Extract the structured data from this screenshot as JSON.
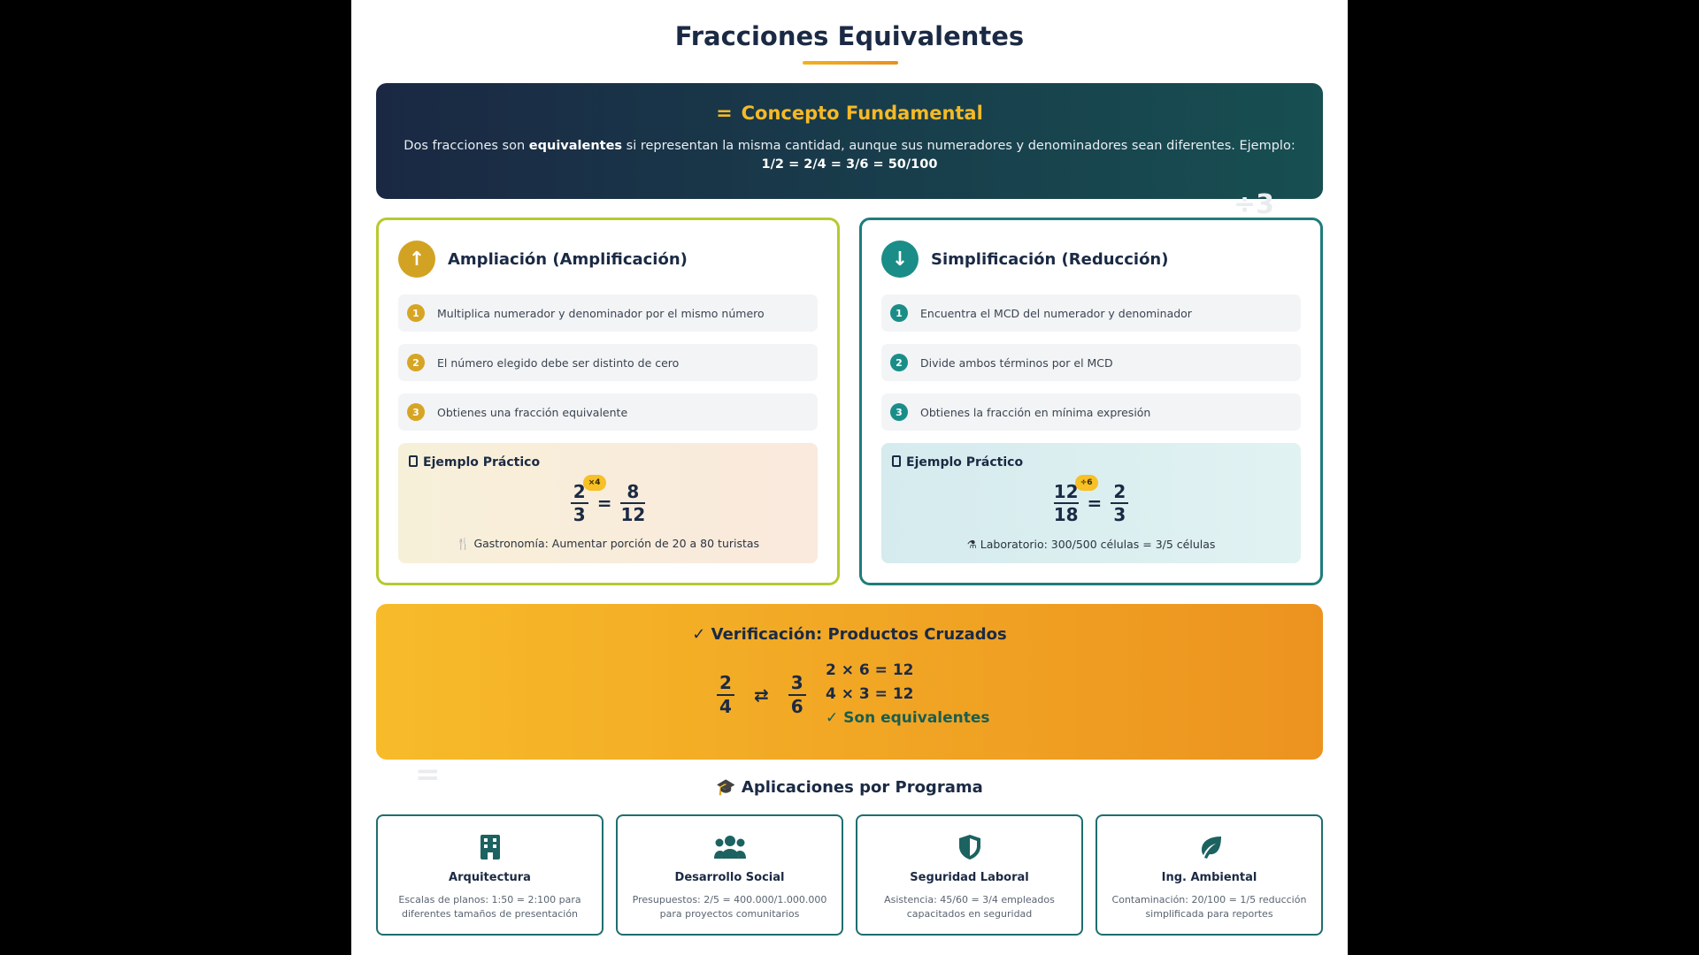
{
  "title": "Fracciones Equivalentes",
  "concept": {
    "title": "Concepto Fundamental",
    "text_before": "Dos fracciones son ",
    "text_bold": "equivalentes",
    "text_after": " si representan la misma cantidad, aunque sus numeradores y denominadores sean diferentes. Ejemplo: ",
    "example": "1/2 = 2/4 = 3/6 = 50/100"
  },
  "amplification": {
    "title": "Ampliación (Amplificación)",
    "steps": [
      {
        "n": "1",
        "text": "Multiplica numerador y denominador por el mismo número"
      },
      {
        "n": "2",
        "text": "El número elegido debe ser distinto de cero"
      },
      {
        "n": "3",
        "text": "Obtienes una fracción equivalente"
      }
    ],
    "example_title": "Ejemplo Práctico",
    "frac1": {
      "num": "2",
      "den": "3"
    },
    "badge": "×4",
    "frac2": {
      "num": "8",
      "den": "12"
    },
    "note": "Gastronomía: Aumentar porción de 20 a 80 turistas"
  },
  "simplification": {
    "title": "Simplificación (Reducción)",
    "steps": [
      {
        "n": "1",
        "text": "Encuentra el MCD del numerador y denominador"
      },
      {
        "n": "2",
        "text": "Divide ambos términos por el MCD"
      },
      {
        "n": "3",
        "text": "Obtienes la fracción en mínima expresión"
      }
    ],
    "example_title": "Ejemplo Práctico",
    "frac1": {
      "num": "12",
      "den": "18"
    },
    "badge": "÷6",
    "frac2": {
      "num": "2",
      "den": "3"
    },
    "note": "Laboratorio: 300/500 células = 3/5 células"
  },
  "verification": {
    "title": "Verificación: Productos Cruzados",
    "frac1": {
      "num": "2",
      "den": "4"
    },
    "frac2": {
      "num": "3",
      "den": "6"
    },
    "line1": "2 × 6 = 12",
    "line2": "4 × 3 = 12",
    "result": "✓ Son equivalentes"
  },
  "applications": {
    "title": "Aplicaciones por Programa",
    "items": [
      {
        "title": "Arquitectura",
        "desc": "Escalas de planos: 1:50 = 2:100 para diferentes tamaños de presentación",
        "icon": "building-icon"
      },
      {
        "title": "Desarrollo Social",
        "desc": "Presupuestos: 2/5 = 400.000/1.000.000 para proyectos comunitarios",
        "icon": "people-icon"
      },
      {
        "title": "Seguridad Laboral",
        "desc": "Asistencia: 45/60 = 3/4 empleados capacitados en seguridad",
        "icon": "shield-icon"
      },
      {
        "title": "Ing. Ambiental",
        "desc": "Contaminación: 20/100 = 1/5 reducción simplificada para reportes",
        "icon": "leaf-icon"
      }
    ]
  }
}
